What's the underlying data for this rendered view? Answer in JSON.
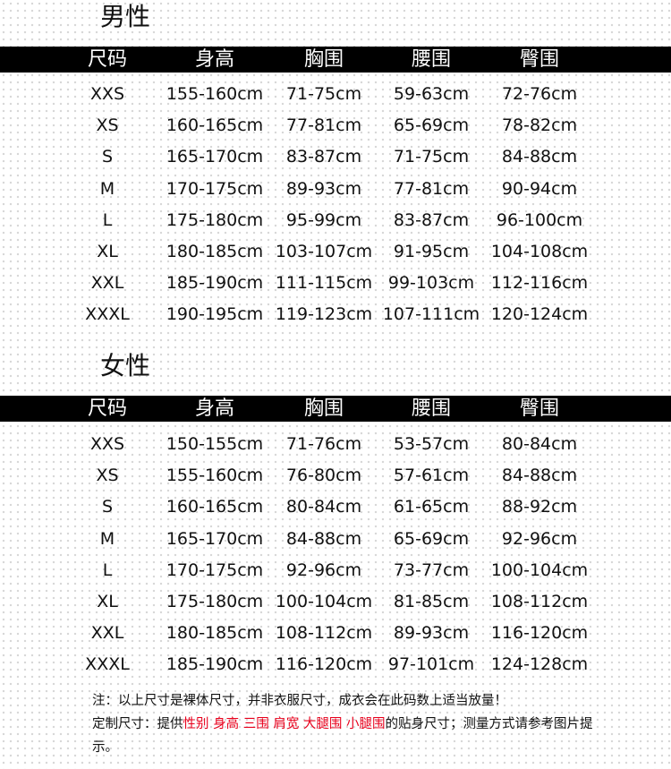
{
  "columns": [
    "尺码",
    "身高",
    "胸围",
    "腰围",
    "臀围"
  ],
  "men": {
    "title": "男性",
    "rows": [
      [
        "XXS",
        "155-160cm",
        "71-75cm",
        "59-63cm",
        "72-76cm"
      ],
      [
        "XS",
        "160-165cm",
        "77-81cm",
        "65-69cm",
        "78-82cm"
      ],
      [
        "S",
        "165-170cm",
        "83-87cm",
        "71-75cm",
        "84-88cm"
      ],
      [
        "M",
        "170-175cm",
        "89-93cm",
        "77-81cm",
        "90-94cm"
      ],
      [
        "L",
        "175-180cm",
        "95-99cm",
        "83-87cm",
        "96-100cm"
      ],
      [
        "XL",
        "180-185cm",
        "103-107cm",
        "91-95cm",
        "104-108cm"
      ],
      [
        "XXL",
        "185-190cm",
        "111-115cm",
        "99-103cm",
        "112-116cm"
      ],
      [
        "XXXL",
        "190-195cm",
        "119-123cm",
        "107-111cm",
        "120-124cm"
      ]
    ]
  },
  "women": {
    "title": "女性",
    "rows": [
      [
        "XXS",
        "150-155cm",
        "71-76cm",
        "53-57cm",
        "80-84cm"
      ],
      [
        "XS",
        "155-160cm",
        "76-80cm",
        "57-61cm",
        "84-88cm"
      ],
      [
        "S",
        "160-165cm",
        "80-84cm",
        "61-65cm",
        "88-92cm"
      ],
      [
        "M",
        "165-170cm",
        "84-88cm",
        "65-69cm",
        "92-96cm"
      ],
      [
        "L",
        "170-175cm",
        "92-96cm",
        "73-77cm",
        "100-104cm"
      ],
      [
        "XL",
        "175-180cm",
        "100-104cm",
        "81-85cm",
        "108-112cm"
      ],
      [
        "XXL",
        "180-185cm",
        "108-112cm",
        "89-93cm",
        "116-120cm"
      ],
      [
        "XXXL",
        "185-190cm",
        "116-120cm",
        "97-101cm",
        "124-128cm"
      ]
    ]
  },
  "notes": {
    "line1": "注：以上尺寸是裸体尺寸，并非衣服尺寸，成衣会在此码数上适当放量！",
    "custom_prefix": "定制尺寸：提供",
    "custom_highlight": "性别 身高 三围 肩宽 大腿围 小腿围",
    "custom_suffix": "的贴身尺寸；测量方式请参考图片提示。"
  },
  "colors": {
    "header_bg": "#000000",
    "highlight": "#e8001c"
  }
}
